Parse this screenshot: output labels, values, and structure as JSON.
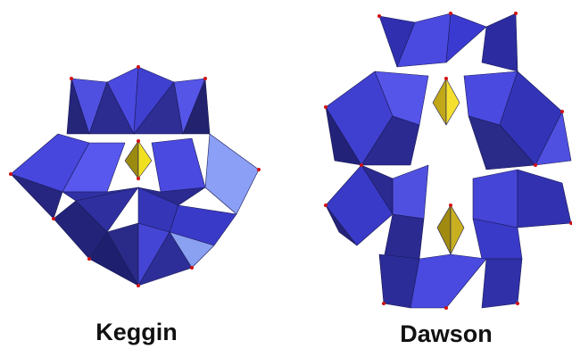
{
  "figures": [
    {
      "label": "Keggin"
    },
    {
      "label": "Dawson"
    }
  ]
}
